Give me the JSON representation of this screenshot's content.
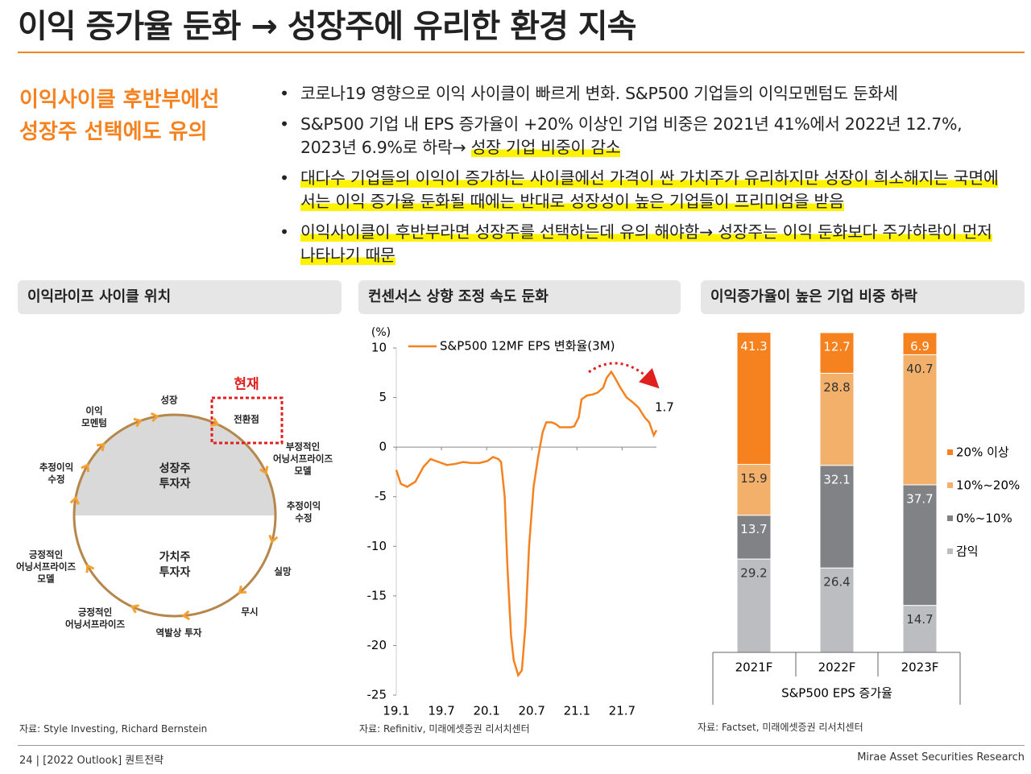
{
  "header": {
    "title": "이익 증가율 둔화 → 성장주에 유리한 환경 지속"
  },
  "sidebar": {
    "lines": [
      "이익사이클 후반부에선",
      "성장주 선택에도 유의"
    ]
  },
  "bullets": [
    [
      {
        "text": "코로나19 영향으로 이익 사이클이 빠르게 변화. S&P500 기업들의 이익모멘텀도 둔화세",
        "highlight": false
      }
    ],
    [
      {
        "text": "S&P500 기업 내 EPS 증가율이 +20% 이상인 기업 비중은 2021년 41%에서 2022년 12.7%, 2023년 6.9%로 하락→ ",
        "highlight": false
      },
      {
        "text": "성장 기업 비중이 감소",
        "highlight": true
      }
    ],
    [
      {
        "text": "대다수 기업들의 이익이 증가하는 사이클에선 가격이 싼 가치주가 유리하지만 성장이 희소해지는 국면에서는 이익 증가율 둔화될 때에는 반대로 성장성이 높은 기업들이 프리미엄을 받음",
        "highlight": true
      }
    ],
    [
      {
        "text": "이익사이클이 후반부라면 성장주를 선택하는데 유의 해야함→ 성장주는 이익 둔화보다 주가하락이 먼저 나타나기 때문",
        "highlight": true
      }
    ]
  ],
  "panels": [
    {
      "title": "이익라이프 사이클 위치",
      "source": "자료: Style Investing, Richard Bernstein"
    },
    {
      "title": "컨센서스 상향 조정 속도 둔화",
      "source": "자료: Refinitiv, 미래에셋증권 리서치센터"
    },
    {
      "title": "이익증가율이 높은 기업 비중 하락",
      "source": "자료: Factset, 미래에셋증권 리서치센터"
    }
  ],
  "diagram": {
    "labels": [
      "이익\n모멘텀",
      "성장",
      "전환점",
      "현재",
      "부정적인\n어닝서프라이즈\n모델",
      "추정이익\n수정",
      "실망",
      "무시",
      "역발상 투자",
      "긍정적인\n어닝서프라이즈",
      "긍정적인\n어닝서프라이즈\n모델",
      "추정이익\n수정",
      "성장주\n투자자",
      "가치주\n투자자"
    ]
  },
  "chart_data": [
    {
      "type": "line",
      "y_unit": "(%)",
      "x": [
        2019.0,
        2019.05,
        2019.12,
        2019.21,
        2019.3,
        2019.38,
        2019.47,
        2019.56,
        2019.65,
        2019.74,
        2019.83,
        2019.92,
        2020.01,
        2020.07,
        2020.13,
        2020.16,
        2020.2,
        2020.23,
        2020.27,
        2020.3,
        2020.35,
        2020.39,
        2020.43,
        2020.47,
        2020.52,
        2020.57,
        2020.62,
        2020.66,
        2020.72,
        2020.77,
        2020.81,
        2020.86,
        2020.93,
        2020.97,
        2021.02,
        2021.05,
        2021.11,
        2021.17,
        2021.23,
        2021.29,
        2021.33,
        2021.38,
        2021.42,
        2021.48,
        2021.55,
        2021.62,
        2021.68,
        2021.75,
        2021.8,
        2021.85,
        2021.88
      ],
      "series": [
        {
          "name": "S&P500 12MF EPS 변화율(3M)",
          "color": "#f5821f",
          "values": [
            -2.3,
            -3.7,
            -4,
            -3.5,
            -2,
            -1.2,
            -1.5,
            -1.8,
            -1.7,
            -1.5,
            -1.6,
            -1.6,
            -1.4,
            -1,
            -1.2,
            -1.5,
            -5,
            -12,
            -19,
            -21.5,
            -23,
            -22.5,
            -18,
            -10,
            -4,
            -1,
            1.5,
            2.5,
            2.5,
            2.3,
            2,
            2,
            2,
            2.1,
            3,
            4.8,
            5.2,
            5.3,
            5.5,
            6,
            7,
            7.6,
            7,
            6,
            5,
            4.5,
            4,
            3,
            2.5,
            1.2,
            1.7
          ]
        }
      ],
      "xlim": [
        2019.0,
        2021.88
      ],
      "xticks": [
        {
          "value": 2019.0,
          "label": "19.1"
        },
        {
          "value": 2019.5,
          "label": "19.7"
        },
        {
          "value": 2020.0,
          "label": "20.1"
        },
        {
          "value": 2020.5,
          "label": "20.7"
        },
        {
          "value": 2021.0,
          "label": "21.1"
        },
        {
          "value": 2021.5,
          "label": "21.7"
        }
      ],
      "ylim": [
        -25,
        10
      ],
      "yticks": [
        -25,
        -20,
        -15,
        -10,
        -5,
        0,
        5,
        10
      ]
    },
    {
      "type": "stacked_bar",
      "categories": [
        "2021F",
        "2022F",
        "2023F"
      ],
      "x_label": "S&P500 EPS 증가율",
      "series": [
        {
          "name": "감익",
          "color": "#bcbdc0",
          "values": [
            29.2,
            26.4,
            14.7
          ]
        },
        {
          "name": "0%~10%",
          "color": "#808285",
          "values": [
            13.7,
            32.1,
            37.7
          ]
        },
        {
          "name": "10%~20%",
          "color": "#f2b06a",
          "values": [
            15.9,
            28.8,
            40.7
          ]
        },
        {
          "name": "20% 이상",
          "color": "#f5821f",
          "values": [
            41.3,
            12.7,
            6.9
          ]
        }
      ],
      "ylim": [
        0,
        100
      ]
    }
  ],
  "footer": {
    "left": "24 | [2022 Outlook] 퀀트전략",
    "right": "Mirae Asset Securities Research"
  }
}
